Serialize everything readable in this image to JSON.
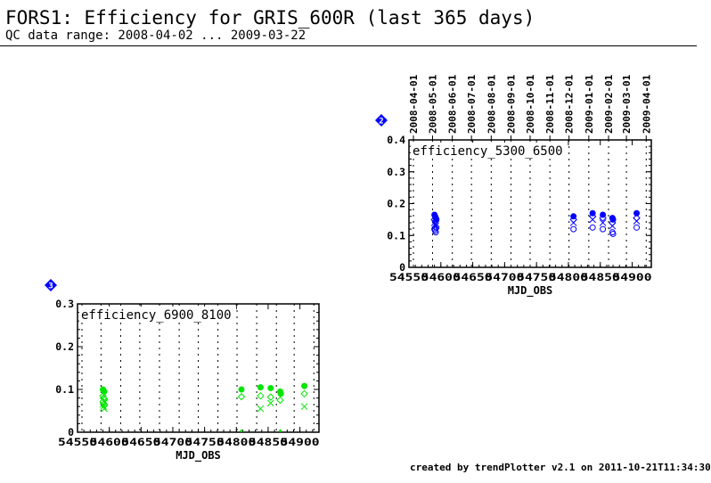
{
  "header": {
    "title": "FORS1: Efficiency for GRIS_600R (last 365 days)",
    "subtitle": "QC data range: 2008-04-02 ... 2009-03-22"
  },
  "footer": {
    "text": "created by trendPlotter v2.1 on 2011-10-21T11:34:30"
  },
  "colors": {
    "panel1": "#0000ff",
    "panel2": "#00e600",
    "badge": "#0000ff",
    "grid": "#000000"
  },
  "chart_data": [
    {
      "type": "scatter",
      "badge": "2",
      "label": "efficiency_5300_6500",
      "color": "#0000ff",
      "xlabel": "MJD_OBS",
      "xlim": [
        54550,
        54930
      ],
      "ylim": [
        0,
        0.4
      ],
      "xticks": [
        54550,
        54600,
        54650,
        54700,
        54750,
        54800,
        54850,
        54900
      ],
      "yticks": [
        0,
        0.1,
        0.2,
        0.3,
        0.4
      ],
      "ytick_labels": [
        "0",
        "0.1",
        "0.2",
        "0.3",
        "0.4"
      ],
      "date_ticks": [
        {
          "mjd": 54557,
          "label": "2008-04-01"
        },
        {
          "mjd": 54587,
          "label": "2008-05-01"
        },
        {
          "mjd": 54618,
          "label": "2008-06-01"
        },
        {
          "mjd": 54648,
          "label": "2008-07-01"
        },
        {
          "mjd": 54679,
          "label": "2008-08-01"
        },
        {
          "mjd": 54710,
          "label": "2008-09-01"
        },
        {
          "mjd": 54740,
          "label": "2008-10-01"
        },
        {
          "mjd": 54771,
          "label": "2008-11-01"
        },
        {
          "mjd": 54801,
          "label": "2008-12-01"
        },
        {
          "mjd": 54832,
          "label": "2009-01-01"
        },
        {
          "mjd": 54863,
          "label": "2009-02-01"
        },
        {
          "mjd": 54891,
          "label": "2009-03-01"
        },
        {
          "mjd": 54922,
          "label": "2009-04-01"
        }
      ],
      "series": [
        {
          "marker": "filled-circle",
          "points": [
            [
              54590,
              0.165
            ],
            [
              54591,
              0.16
            ],
            [
              54592,
              0.155
            ],
            [
              54593,
              0.15
            ],
            [
              54808,
              0.16
            ],
            [
              54838,
              0.17
            ],
            [
              54854,
              0.165
            ],
            [
              54869,
              0.155
            ],
            [
              54870,
              0.15
            ],
            [
              54907,
              0.17
            ]
          ]
        },
        {
          "marker": "cross",
          "points": [
            [
              54590,
              0.14
            ],
            [
              54591,
              0.135
            ],
            [
              54592,
              0.13
            ],
            [
              54808,
              0.14
            ],
            [
              54838,
              0.15
            ],
            [
              54854,
              0.14
            ],
            [
              54869,
              0.13
            ],
            [
              54907,
              0.145
            ]
          ]
        },
        {
          "marker": "diamond",
          "points": [
            [
              54590,
              0.15
            ],
            [
              54592,
              0.145
            ],
            [
              54808,
              0.15
            ],
            [
              54838,
              0.16
            ],
            [
              54854,
              0.155
            ],
            [
              54869,
              0.14
            ],
            [
              54907,
              0.155
            ]
          ]
        },
        {
          "marker": "open-circle",
          "points": [
            [
              54590,
              0.12
            ],
            [
              54591,
              0.115
            ],
            [
              54592,
              0.11
            ],
            [
              54593,
              0.125
            ],
            [
              54808,
              0.12
            ],
            [
              54838,
              0.125
            ],
            [
              54854,
              0.12
            ],
            [
              54869,
              0.11
            ],
            [
              54870,
              0.105
            ],
            [
              54907,
              0.125
            ]
          ]
        }
      ]
    },
    {
      "type": "scatter",
      "badge": "3",
      "label": "efficiency_6900_8100",
      "color": "#00e600",
      "xlabel": "MJD_OBS",
      "xlim": [
        54550,
        54930
      ],
      "ylim": [
        0,
        0.3
      ],
      "xticks": [
        54550,
        54600,
        54650,
        54700,
        54750,
        54800,
        54850,
        54900
      ],
      "yticks": [
        0,
        0.1,
        0.2,
        0.3
      ],
      "ytick_labels": [
        "0",
        "0.1",
        "0.2",
        "0.3"
      ],
      "grid_mjd": [
        54557,
        54587,
        54618,
        54648,
        54679,
        54710,
        54740,
        54771,
        54801,
        54832,
        54863,
        54891,
        54922
      ],
      "series": [
        {
          "marker": "filled-circle",
          "points": [
            [
              54590,
              0.1
            ],
            [
              54591,
              0.097
            ],
            [
              54592,
              0.095
            ],
            [
              54808,
              0.1
            ],
            [
              54838,
              0.105
            ],
            [
              54854,
              0.103
            ],
            [
              54869,
              0.095
            ],
            [
              54870,
              0.09
            ],
            [
              54907,
              0.108
            ]
          ]
        },
        {
          "marker": "diamond",
          "points": [
            [
              54590,
              0.085
            ],
            [
              54591,
              0.08
            ],
            [
              54592,
              0.078
            ],
            [
              54808,
              0.083
            ],
            [
              54838,
              0.085
            ],
            [
              54854,
              0.082
            ],
            [
              54869,
              0.075
            ],
            [
              54907,
              0.09
            ]
          ]
        },
        {
          "marker": "cross",
          "points": [
            [
              54590,
              0.065
            ],
            [
              54591,
              0.06
            ],
            [
              54592,
              0.055
            ],
            [
              54593,
              0.07
            ],
            [
              54838,
              0.055
            ],
            [
              54854,
              0.068
            ],
            [
              54907,
              0.06
            ]
          ]
        },
        {
          "marker": "open-circle",
          "points": [
            [
              54590,
              0.07
            ],
            [
              54592,
              0.065
            ]
          ]
        },
        {
          "marker": "small-dot",
          "points": [
            [
              54808,
              0.003
            ],
            [
              54869,
              0.003
            ]
          ]
        }
      ]
    }
  ]
}
